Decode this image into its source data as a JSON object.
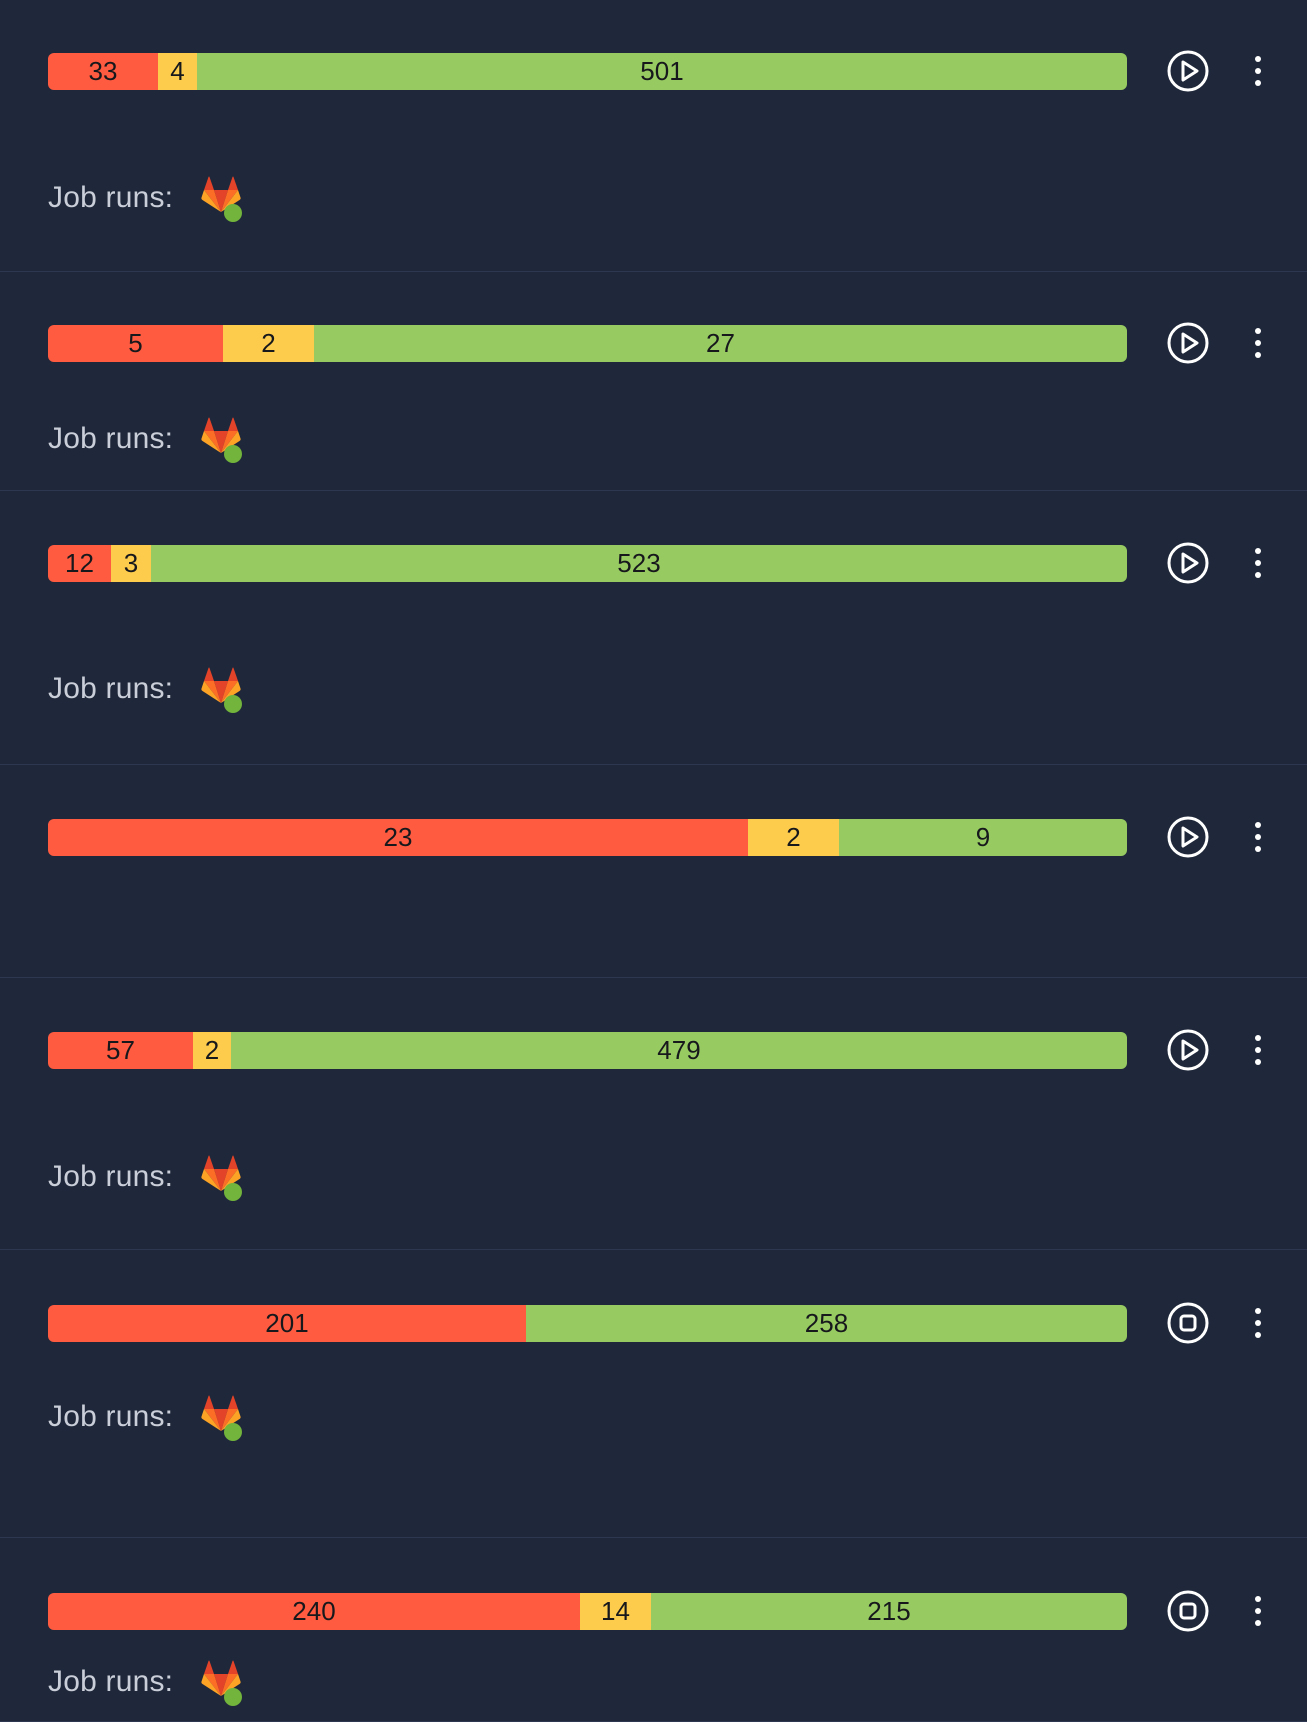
{
  "colors": {
    "background": "#1f283a",
    "failed": "#fe5b40",
    "skipped": "#fdcc4c",
    "passed": "#97cb62",
    "job_status_dot": "#72b43c"
  },
  "rows": [
    {
      "segments": [
        {
          "status": "failed",
          "count": "33"
        },
        {
          "status": "skipped",
          "count": "4"
        },
        {
          "status": "passed",
          "count": "501"
        }
      ],
      "action_icon": "play-icon",
      "job_runs_label": "Job runs:",
      "job_runs": [
        {
          "icon": "gitlab-icon",
          "status": "success"
        }
      ]
    },
    {
      "segments": [
        {
          "status": "failed",
          "count": "5"
        },
        {
          "status": "skipped",
          "count": "2"
        },
        {
          "status": "passed",
          "count": "27"
        }
      ],
      "action_icon": "play-icon",
      "job_runs_label": "Job runs:",
      "job_runs": [
        {
          "icon": "gitlab-icon",
          "status": "success"
        }
      ]
    },
    {
      "segments": [
        {
          "status": "failed",
          "count": "12"
        },
        {
          "status": "skipped",
          "count": "3"
        },
        {
          "status": "passed",
          "count": "523"
        }
      ],
      "action_icon": "play-icon",
      "job_runs_label": "Job runs:",
      "job_runs": [
        {
          "icon": "gitlab-icon",
          "status": "success"
        }
      ]
    },
    {
      "segments": [
        {
          "status": "failed",
          "count": "23"
        },
        {
          "status": "skipped",
          "count": "2"
        },
        {
          "status": "passed",
          "count": "9"
        }
      ],
      "action_icon": "play-icon",
      "job_runs_label": "",
      "job_runs": []
    },
    {
      "segments": [
        {
          "status": "failed",
          "count": "57"
        },
        {
          "status": "skipped",
          "count": "2"
        },
        {
          "status": "passed",
          "count": "479"
        }
      ],
      "action_icon": "play-icon",
      "job_runs_label": "Job runs:",
      "job_runs": [
        {
          "icon": "gitlab-icon",
          "status": "success"
        }
      ]
    },
    {
      "segments": [
        {
          "status": "failed",
          "count": "201"
        },
        {
          "status": "passed",
          "count": "258"
        }
      ],
      "action_icon": "stop-icon",
      "job_runs_label": "Job runs:",
      "job_runs": [
        {
          "icon": "gitlab-icon",
          "status": "success"
        }
      ]
    },
    {
      "segments": [
        {
          "status": "failed",
          "count": "240"
        },
        {
          "status": "skipped",
          "count": "14"
        },
        {
          "status": "passed",
          "count": "215"
        }
      ],
      "action_icon": "stop-icon",
      "job_runs_label": "Job runs:",
      "job_runs": [
        {
          "icon": "gitlab-icon",
          "status": "success"
        }
      ]
    }
  ]
}
